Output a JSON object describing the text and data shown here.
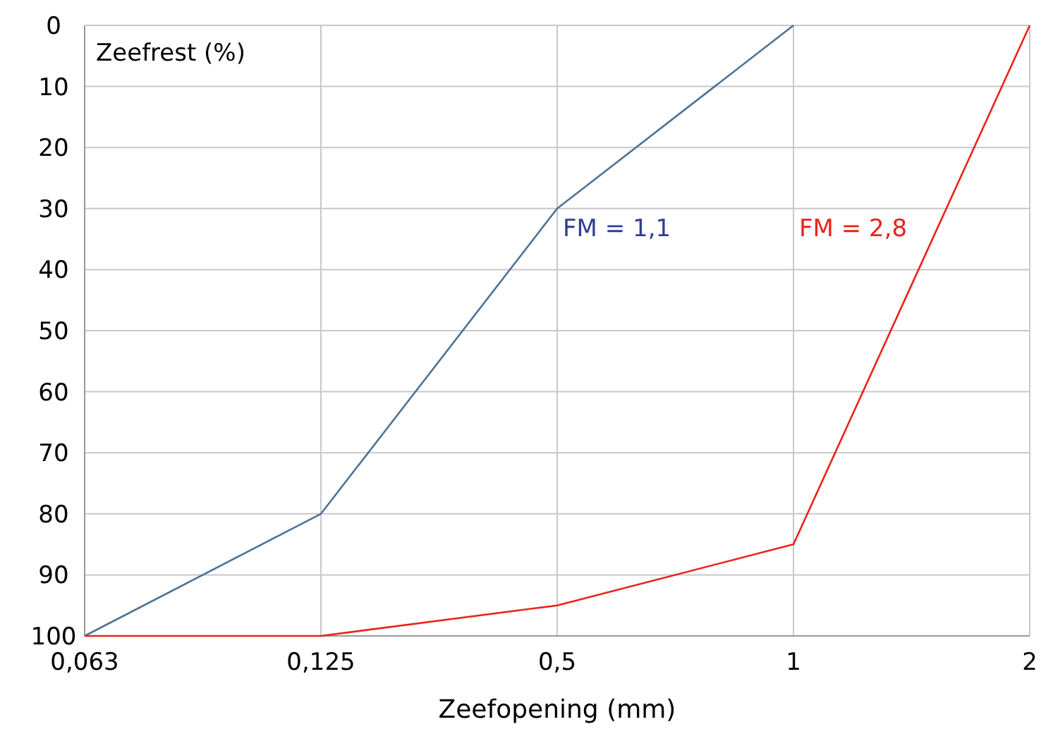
{
  "chart_data": {
    "type": "line",
    "xlabel": "Zeefopening (mm)",
    "ylabel": "Zeefrest (%)",
    "categories": [
      "0,063",
      "0,125",
      "0,5",
      "1",
      "2"
    ],
    "series": [
      {
        "color": "#4f7396",
        "values": [
          100,
          80,
          30,
          0,
          null
        ]
      },
      {
        "color": "#e8231b",
        "values": [
          100,
          100,
          95,
          85,
          0
        ]
      }
    ],
    "ylim": [
      100,
      0
    ],
    "yticks": [
      0,
      10,
      20,
      30,
      40,
      50,
      60,
      70,
      80,
      90,
      100
    ],
    "grid": true,
    "annotations": [
      "FM = 1,1",
      "FM = 2,8"
    ]
  }
}
